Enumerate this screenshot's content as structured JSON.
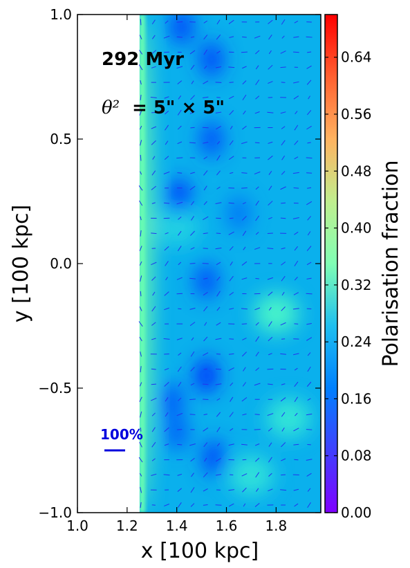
{
  "chart_data": {
    "type": "heatmap",
    "xlabel": "x [100 kpc]",
    "ylabel": "y [100 kpc]",
    "colorbar_label": "Polarisation fraction",
    "xlim": [
      1.0,
      1.98
    ],
    "ylim": [
      -1.0,
      1.0
    ],
    "clim": [
      0.0,
      0.7
    ],
    "x_ticks": [
      1.0,
      1.2,
      1.4,
      1.6,
      1.8
    ],
    "x_tick_labels": [
      "1.0",
      "1.2",
      "1.4",
      "1.6",
      "1.8"
    ],
    "y_ticks": [
      1.0,
      0.5,
      0.0,
      -0.5,
      -1.0
    ],
    "y_tick_labels": [
      "1.0",
      "0.5",
      "0.0",
      "−0.5",
      "−1.0"
    ],
    "colorbar_ticks": [
      0.0,
      0.08,
      0.16,
      0.24,
      0.32,
      0.4,
      0.48,
      0.56,
      0.64
    ],
    "colorbar_tick_labels": [
      "0.00",
      "0.08",
      "0.16",
      "0.24",
      "0.32",
      "0.40",
      "0.48",
      "0.56",
      "0.64"
    ],
    "colormap": "rainbow",
    "data_extent_x": [
      1.25,
      1.98
    ],
    "annotations": {
      "time": "292 Myr",
      "beam_symbol": "θ²",
      "beam_size": "= 5\" × 5\"",
      "scale_bar_label": "100%",
      "scale_bar_color": "#0000dd"
    },
    "vector_color": "#2233ee",
    "low_polarisation_blobs": [
      {
        "x": 1.42,
        "y": 0.95,
        "value": 0.05
      },
      {
        "x": 1.54,
        "y": 0.82,
        "value": 0.05
      },
      {
        "x": 1.54,
        "y": 0.5,
        "value": 0.06
      },
      {
        "x": 1.41,
        "y": 0.27,
        "value": 0.04
      },
      {
        "x": 1.52,
        "y": -0.07,
        "value": 0.06
      },
      {
        "x": 1.52,
        "y": -0.45,
        "value": 0.03
      },
      {
        "x": 1.38,
        "y": -0.55,
        "value": 0.07
      },
      {
        "x": 1.55,
        "y": -0.78,
        "value": 0.05
      },
      {
        "x": 1.4,
        "y": -0.68,
        "value": 0.08
      },
      {
        "x": 1.65,
        "y": 0.2,
        "value": 0.1
      }
    ],
    "high_polarisation_regions": [
      {
        "x": 1.26,
        "y": 0.0,
        "value": 0.38
      },
      {
        "x": 1.8,
        "y": -0.2,
        "value": 0.3
      },
      {
        "x": 1.85,
        "y": -0.62,
        "value": 0.26
      },
      {
        "x": 1.7,
        "y": -0.85,
        "value": 0.25
      },
      {
        "x": 1.4,
        "y": 0.15,
        "value": 0.22
      }
    ]
  }
}
